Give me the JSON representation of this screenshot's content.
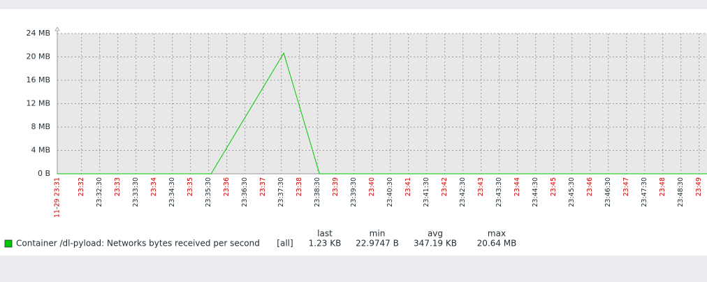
{
  "chart_data": {
    "type": "line",
    "x": [
      "23:31:20",
      "23:35:34",
      "23:37:34",
      "23:38:33",
      "23:49:13"
    ],
    "series": [
      {
        "name": "Container /dl-pyload: Networks bytes received per second",
        "color": "#00c800",
        "values": [
          0,
          0,
          20.64,
          0,
          0
        ],
        "function": "[all]",
        "stats": [
          "1.23 KB",
          "22.9747 B",
          "347.19 KB",
          "20.64 MB"
        ]
      }
    ],
    "legend_columns": [
      "last",
      "min",
      "avg",
      "max"
    ],
    "ylim": [
      0,
      24
    ],
    "yticks": [
      {
        "value": 0,
        "label": "0 B"
      },
      {
        "value": 4,
        "label": "4 MB"
      },
      {
        "value": 8,
        "label": "8 MB"
      },
      {
        "value": 12,
        "label": "12 MB"
      },
      {
        "value": 16,
        "label": "16 MB"
      },
      {
        "value": 20,
        "label": "20 MB"
      },
      {
        "value": 24,
        "label": "24 MB"
      }
    ],
    "xlim": [
      "23:31:20",
      "23:49:13"
    ],
    "xticks": [
      {
        "value": "23:31:20",
        "label": "11-29 23:31"
      },
      {
        "value": "23:32:00",
        "label": "23:32"
      },
      "23:32:30",
      {
        "value": "23:33:00",
        "label": "23:33"
      },
      "23:33:30",
      {
        "value": "23:34:00",
        "label": "23:34"
      },
      "23:34:30",
      {
        "value": "23:35:00",
        "label": "23:35"
      },
      "23:35:30",
      {
        "value": "23:36:00",
        "label": "23:36"
      },
      "23:36:30",
      {
        "value": "23:37:00",
        "label": "23:37"
      },
      "23:37:30",
      {
        "value": "23:38:00",
        "label": "23:38"
      },
      "23:38:30",
      {
        "value": "23:39:00",
        "label": "23:39"
      },
      "23:39:30",
      {
        "value": "23:40:00",
        "label": "23:40"
      },
      "23:40:30",
      {
        "value": "23:41:00",
        "label": "23:41"
      },
      "23:41:30",
      {
        "value": "23:42:00",
        "label": "23:42"
      },
      "23:42:30",
      {
        "value": "23:43:00",
        "label": "23:43"
      },
      "23:43:30",
      {
        "value": "23:44:00",
        "label": "23:44"
      },
      "23:44:30",
      {
        "value": "23:45:00",
        "label": "23:45"
      },
      "23:45:30",
      {
        "value": "23:46:00",
        "label": "23:46"
      },
      "23:46:30",
      {
        "value": "23:47:00",
        "label": "23:47"
      },
      "23:47:30",
      {
        "value": "23:48:00",
        "label": "23:48"
      },
      "23:48:30",
      {
        "value": "23:49:00",
        "label": "23:49"
      }
    ],
    "grid": true,
    "major_tick_color": "#cc0000",
    "plot_background": "#e8e8e8"
  }
}
